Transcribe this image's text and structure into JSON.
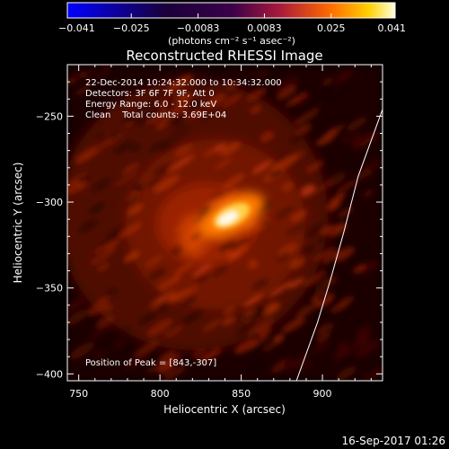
{
  "chart_data": {
    "type": "heatmap",
    "title": "Reconstructed RHESSI Image",
    "xlabel": "Heliocentric X (arcsec)",
    "ylabel": "Heliocentric Y (arcsec)",
    "xlim": [
      743,
      937
    ],
    "ylim": [
      -404,
      -220
    ],
    "x_ticks": [
      750,
      800,
      850,
      900
    ],
    "x_tick_labels": [
      "750",
      "800",
      "850",
      "900"
    ],
    "y_ticks": [
      -250,
      -300,
      -350,
      -400
    ],
    "y_tick_labels": [
      "−250",
      "−300",
      "−350",
      "−400"
    ],
    "colorbar": {
      "min": -0.041,
      "max": 0.041,
      "tick_values": [
        -0.041,
        -0.025,
        -0.0083,
        0.0083,
        0.025,
        0.041
      ],
      "tick_labels": [
        "−0.041",
        "−0.025",
        "−0.0083",
        "0.0083",
        "0.025",
        "0.041"
      ],
      "unit_label": "(photons cm⁻² s⁻¹ asec⁻²)"
    },
    "annotations": [
      "22-Dec-2014 10:24:32.000 to 10:34:32.000",
      "Detectors: 3F 6F 7F 9F, Att 0",
      "Energy Range: 6.0 - 12.0 keV",
      "Clean    Total counts: 3.69E+04"
    ],
    "peak_label": "Position of Peak = [843,-307]",
    "peak": [
      843,
      -307
    ],
    "limb_curve": [
      [
        884,
        -404
      ],
      [
        897,
        -370
      ],
      [
        905,
        -345
      ],
      [
        913,
        -318
      ],
      [
        922,
        -285
      ],
      [
        937,
        -246
      ]
    ],
    "grid": false,
    "colors": {
      "background": "#000000",
      "axes": "#ffffff",
      "limb": "#ffffff"
    }
  },
  "footer": {
    "timestamp": "16-Sep-2017 01:26"
  }
}
